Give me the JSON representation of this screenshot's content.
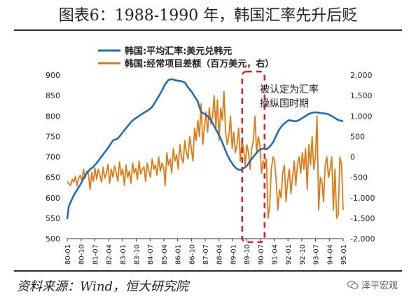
{
  "title": "图表6：1988-1990 年，韩国汇率先升后贬",
  "source": "资料来源：Wind，恒大研究院",
  "watermark": "泽平宏观",
  "annotation": "被认定为汇率\n操纵国时期",
  "colors": {
    "fx": "#1f6fb8",
    "ca": "#e07b14",
    "annot": "#e02020",
    "axis": "#333333"
  },
  "chart_data": {
    "type": "line",
    "x_tick_labels": [
      "80-01",
      "80-10",
      "81-07",
      "82-04",
      "83-01",
      "83-10",
      "84-07",
      "85-04",
      "86-01",
      "86-10",
      "87-07",
      "88-04",
      "89-01",
      "89-10",
      "90-07",
      "91-04",
      "92-01",
      "92-10",
      "93-07",
      "94-04",
      "95-01"
    ],
    "left_axis": {
      "ylim": [
        500,
        900
      ],
      "ticks": [
        500,
        550,
        600,
        650,
        700,
        750,
        800,
        850,
        900
      ]
    },
    "right_axis": {
      "ylim": [
        -2000,
        2000
      ],
      "ticks": [
        -2000,
        -1500,
        -1000,
        -500,
        0,
        500,
        1000,
        1500,
        2000
      ],
      "tick_labels": [
        "-2,000",
        "-1,500",
        "-1,000",
        "-500",
        "0",
        "500",
        "1,000",
        "1,500",
        "2,000"
      ]
    },
    "series": [
      {
        "name": "韩国:平均汇率:美元兑韩元",
        "axis": "left",
        "anchors": [
          [
            0,
            548
          ],
          [
            1,
            580
          ],
          [
            4,
            606
          ],
          [
            8,
            632
          ],
          [
            11,
            655
          ],
          [
            14,
            670
          ],
          [
            16,
            675
          ],
          [
            19,
            690
          ],
          [
            22,
            706
          ],
          [
            25,
            722
          ],
          [
            28,
            740
          ],
          [
            31,
            745
          ],
          [
            34,
            760
          ],
          [
            37,
            775
          ],
          [
            39,
            785
          ],
          [
            41,
            792
          ],
          [
            44,
            800
          ],
          [
            47,
            808
          ],
          [
            50,
            815
          ],
          [
            52,
            822
          ],
          [
            54,
            835
          ],
          [
            56,
            848
          ],
          [
            58,
            862
          ],
          [
            60,
            878
          ],
          [
            62,
            888
          ],
          [
            64,
            890
          ],
          [
            66,
            888
          ],
          [
            68,
            886
          ],
          [
            70,
            885
          ],
          [
            72,
            882
          ],
          [
            74,
            870
          ],
          [
            76,
            860
          ],
          [
            78,
            848
          ],
          [
            80,
            835
          ],
          [
            81,
            822
          ],
          [
            82,
            810
          ],
          [
            84,
            805
          ],
          [
            86,
            800
          ],
          [
            88,
            790
          ],
          [
            90,
            775
          ],
          [
            92,
            760
          ],
          [
            94,
            745
          ],
          [
            96,
            725
          ],
          [
            98,
            705
          ],
          [
            100,
            690
          ],
          [
            102,
            678
          ],
          [
            104,
            670
          ],
          [
            106,
            668
          ],
          [
            108,
            672
          ],
          [
            110,
            678
          ],
          [
            112,
            690
          ],
          [
            114,
            700
          ],
          [
            116,
            710
          ],
          [
            118,
            718
          ],
          [
            120,
            720
          ],
          [
            122,
            718
          ],
          [
            124,
            725
          ],
          [
            126,
            735
          ],
          [
            128,
            752
          ],
          [
            130,
            768
          ],
          [
            132,
            778
          ],
          [
            134,
            785
          ],
          [
            136,
            790
          ],
          [
            138,
            788
          ],
          [
            140,
            787
          ],
          [
            142,
            790
          ],
          [
            144,
            795
          ],
          [
            146,
            800
          ],
          [
            148,
            805
          ],
          [
            150,
            808
          ],
          [
            152,
            809
          ],
          [
            154,
            808
          ],
          [
            156,
            807
          ],
          [
            158,
            806
          ],
          [
            160,
            804
          ],
          [
            162,
            800
          ],
          [
            164,
            795
          ],
          [
            166,
            790
          ],
          [
            168,
            788
          ]
        ]
      },
      {
        "name": "韩国:经常项目差额（百万美元，右）",
        "axis": "right",
        "values": [
          -600,
          -650,
          -700,
          -550,
          -620,
          -480,
          -700,
          -520,
          -450,
          -600,
          -300,
          -520,
          -350,
          -420,
          -800,
          -380,
          -600,
          -280,
          -550,
          -300,
          -450,
          -620,
          -250,
          -520,
          -400,
          -180,
          -650,
          -300,
          -500,
          -220,
          -380,
          -600,
          -120,
          -450,
          -300,
          -700,
          -200,
          -500,
          -350,
          -650,
          -150,
          -400,
          -280,
          -550,
          -100,
          -420,
          -300,
          -250,
          -600,
          -150,
          -350,
          -500,
          -50,
          -300,
          -200,
          -450,
          0,
          -350,
          -150,
          -250,
          -700,
          100,
          -200,
          -50,
          -400,
          200,
          -100,
          50,
          -300,
          300,
          0,
          -150,
          400,
          100,
          -50,
          500,
          200,
          -100,
          700,
          400,
          900,
          500,
          1300,
          300,
          700,
          1100,
          600,
          1200,
          800,
          1000,
          1500,
          700,
          1400,
          400,
          1200,
          900,
          1600,
          600,
          300,
          500,
          1000,
          200,
          600,
          100,
          300,
          700,
          -100,
          400,
          200,
          -200,
          300,
          100,
          -300,
          200,
          400,
          1000,
          100,
          500,
          300,
          -400,
          -100,
          -200,
          -50,
          -1500,
          -1200,
          -300,
          0,
          -100,
          -600,
          -1300,
          -800,
          -1000,
          -400,
          -200,
          -1100,
          -600,
          -300,
          -900,
          -500,
          -100,
          -700,
          -200,
          0,
          -400,
          100,
          -300,
          200,
          -800,
          300,
          -200,
          500,
          -300,
          0,
          1000,
          -1300,
          -500,
          -600,
          -1100,
          -200,
          0,
          -500,
          -300,
          0,
          -1300,
          -300,
          -1500,
          -1400,
          0,
          -200,
          -1300
        ]
      }
    ],
    "annotation_range_index": [
      108,
      120
    ],
    "grid": false,
    "legend_position": "top-left"
  }
}
